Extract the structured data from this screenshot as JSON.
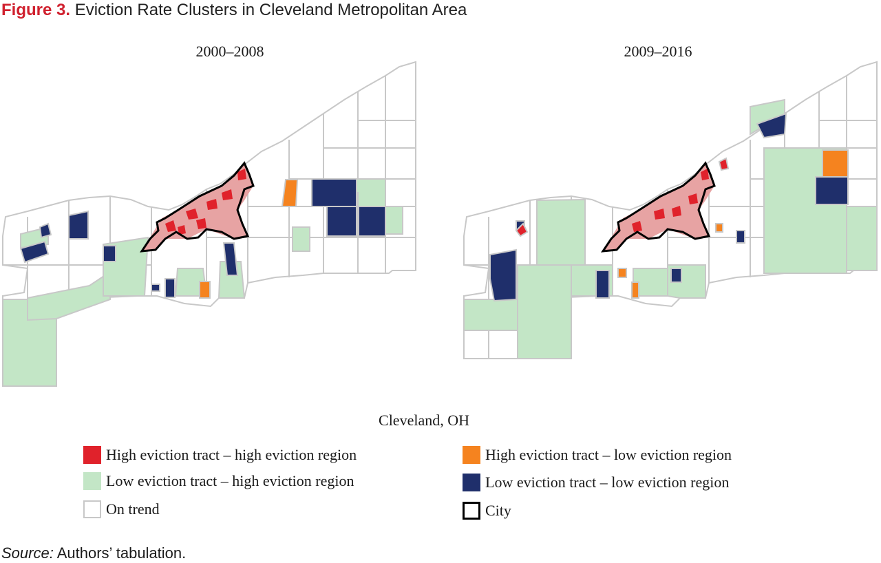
{
  "figure": {
    "label": "Figure 3.",
    "title": "Eviction Rate Clusters in Cleveland Metropolitan Area"
  },
  "panels": [
    {
      "title": "2000–2008"
    },
    {
      "title": "2009–2016"
    }
  ],
  "region_label": "Cleveland, OH",
  "legend": [
    {
      "label": "High eviction tract – high eviction region",
      "color": "#e0222b"
    },
    {
      "label": "High eviction tract – low eviction region",
      "color": "#f5831f"
    },
    {
      "label": "Low eviction tract – high eviction region",
      "color": "#c3e6c6"
    },
    {
      "label": "Low eviction tract – low eviction region",
      "color": "#1f2f6b"
    },
    {
      "label": "On trend",
      "color": "#ffffff"
    },
    {
      "label": "City",
      "color": "#000000"
    }
  ],
  "source": {
    "lead": "Source:",
    "text": "Authors’ tabulation."
  },
  "colors": {
    "tract_border": "#c8c8c8",
    "high_high": "#e0222b",
    "high_low": "#f5831f",
    "low_high": "#c3e6c6",
    "low_low": "#1f2f6b",
    "city_outline": "#000000"
  }
}
